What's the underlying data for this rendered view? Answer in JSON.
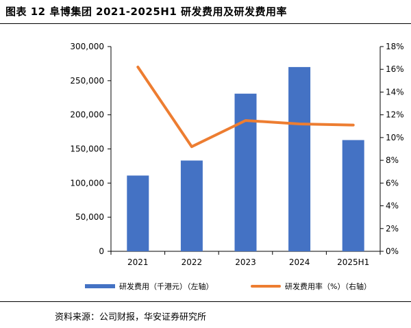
{
  "header": {
    "title": "图表 12 阜博集团 2021-2025H1 研发费用及研发费用率"
  },
  "footer": {
    "source": "资料来源：公司财报，华安证券研究所"
  },
  "chart_data": {
    "type": "bar",
    "categories": [
      "2021",
      "2022",
      "2023",
      "2024",
      "2025H1"
    ],
    "series": [
      {
        "name": "研发费用（千港元）（左轴）",
        "type": "bar",
        "axis": "left",
        "values": [
          111000,
          133000,
          231000,
          270000,
          163000
        ],
        "color": "#4472C4"
      },
      {
        "name": "研发费用率（%）（右轴）",
        "type": "line",
        "axis": "right",
        "values": [
          16.2,
          9.2,
          11.5,
          11.2,
          11.1
        ],
        "color": "#ED7D31"
      }
    ],
    "y_left": {
      "lim": [
        0,
        300000
      ],
      "ticks": [
        "0",
        "50,000",
        "100,000",
        "150,000",
        "200,000",
        "250,000",
        "300,000"
      ]
    },
    "y_right": {
      "lim": [
        0,
        18
      ],
      "ticks": [
        "0%",
        "2%",
        "4%",
        "6%",
        "8%",
        "10%",
        "12%",
        "14%",
        "16%",
        "18%"
      ]
    },
    "grid": false,
    "legend_position": "bottom"
  }
}
